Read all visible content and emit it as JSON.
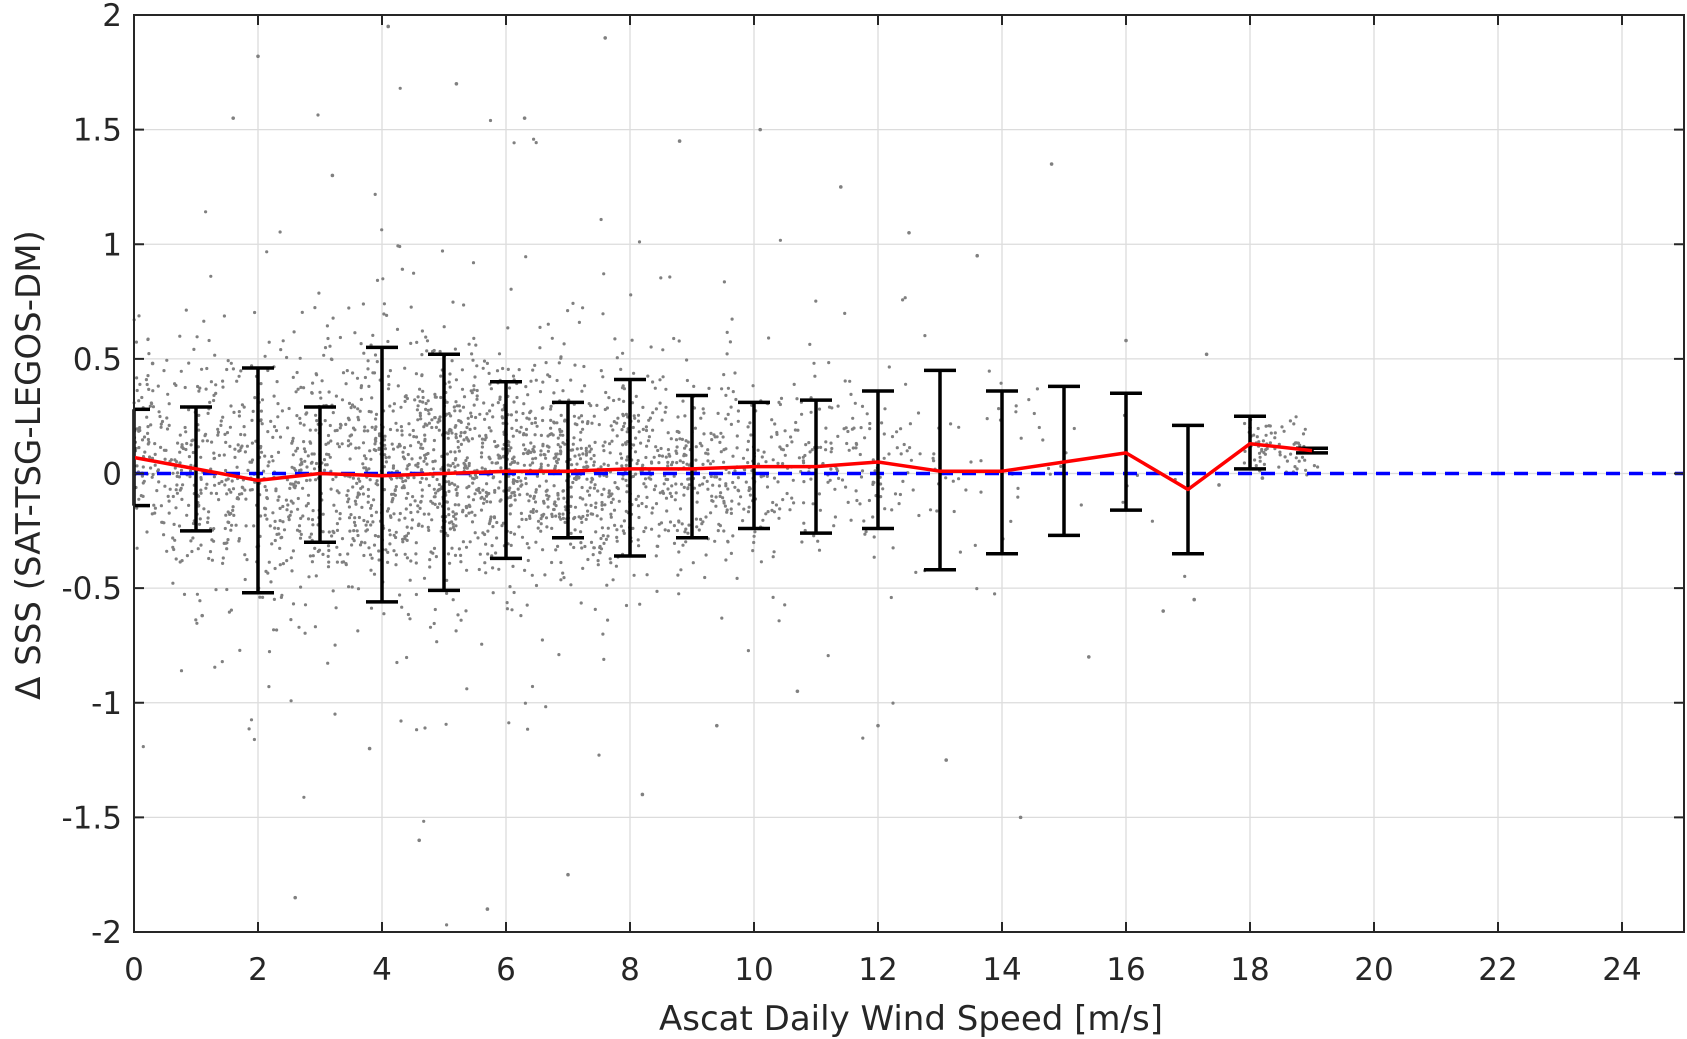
{
  "chart_data": {
    "type": "scatter",
    "title": "",
    "xlabel": "Ascat Daily Wind Speed [m/s]",
    "ylabel": "Δ SSS (SAT-TSG-LEGOS-DM)",
    "xlim": [
      0,
      25
    ],
    "ylim": [
      -2,
      2
    ],
    "x_ticks": [
      0,
      2,
      4,
      6,
      8,
      10,
      12,
      14,
      16,
      18,
      20,
      22,
      24
    ],
    "x_tick_labels": [
      "0",
      "2",
      "4",
      "6",
      "8",
      "10",
      "12",
      "14",
      "16",
      "18",
      "20",
      "22",
      "24"
    ],
    "y_ticks": [
      -2,
      -1.5,
      -1,
      -0.5,
      0,
      0.5,
      1,
      1.5,
      2
    ],
    "y_tick_labels": [
      "-2",
      "-1.5",
      "-1",
      "-0.5",
      "0",
      "0.5",
      "1",
      "1.5",
      "2"
    ],
    "grid": true,
    "legend": "none",
    "colors": {
      "scatter": "#808080",
      "mean_line": "#ff0000",
      "error_bars": "#000000",
      "zero_line": "#0000ff",
      "grid": "#dcdcdc",
      "axes": "#262626"
    },
    "series": [
      {
        "type": "line",
        "x": [
          0,
          1,
          2,
          3,
          4,
          5,
          6,
          7,
          8,
          9,
          10,
          11,
          12,
          13,
          14,
          15,
          16,
          17,
          18,
          19
        ],
        "y": [
          0.07,
          0.02,
          -0.03,
          0.0,
          -0.01,
          0.0,
          0.01,
          0.01,
          0.02,
          0.02,
          0.03,
          0.03,
          0.05,
          0.01,
          0.01,
          0.05,
          0.09,
          -0.07,
          0.13,
          0.1
        ]
      },
      {
        "type": "errorbar",
        "x": [
          0,
          1,
          2,
          3,
          4,
          5,
          6,
          7,
          8,
          9,
          10,
          11,
          12,
          13,
          14,
          15,
          16,
          17,
          18,
          19
        ],
        "lower": [
          -0.14,
          -0.25,
          -0.52,
          -0.3,
          -0.56,
          -0.51,
          -0.37,
          -0.28,
          -0.36,
          -0.28,
          -0.24,
          -0.26,
          -0.24,
          -0.42,
          -0.35,
          -0.27,
          -0.16,
          -0.35,
          0.02,
          0.09
        ],
        "upper": [
          0.28,
          0.29,
          0.46,
          0.29,
          0.55,
          0.52,
          0.4,
          0.31,
          0.41,
          0.34,
          0.31,
          0.32,
          0.36,
          0.45,
          0.36,
          0.38,
          0.35,
          0.21,
          0.25,
          0.11
        ]
      },
      {
        "type": "hline",
        "y": 0
      },
      {
        "type": "scatter",
        "points": [
          [
            0.3,
            0.48
          ],
          [
            1.1,
            -0.62
          ],
          [
            1.6,
            1.55
          ],
          [
            2.0,
            1.82
          ],
          [
            2.6,
            -1.85
          ],
          [
            3.2,
            1.3
          ],
          [
            3.8,
            -1.2
          ],
          [
            4.1,
            1.95
          ],
          [
            4.6,
            -1.6
          ],
          [
            5.2,
            1.7
          ],
          [
            5.7,
            -1.9
          ],
          [
            6.3,
            1.55
          ],
          [
            7.0,
            -1.75
          ],
          [
            7.6,
            1.9
          ],
          [
            8.2,
            -1.4
          ],
          [
            8.8,
            1.45
          ],
          [
            9.4,
            -1.1
          ],
          [
            10.1,
            1.5
          ],
          [
            10.7,
            -0.95
          ],
          [
            11.4,
            1.25
          ],
          [
            12.0,
            -1.1
          ],
          [
            12.5,
            1.05
          ],
          [
            13.1,
            -1.25
          ],
          [
            13.6,
            0.95
          ],
          [
            14.3,
            -1.5
          ],
          [
            14.8,
            1.35
          ],
          [
            15.4,
            -0.8
          ],
          [
            16.0,
            0.58
          ],
          [
            16.6,
            -0.6
          ],
          [
            17.1,
            -0.55
          ],
          [
            17.3,
            0.52
          ],
          [
            17.5,
            -0.05
          ],
          [
            18.0,
            0.2
          ],
          [
            18.2,
            -0.02
          ]
        ]
      }
    ]
  }
}
